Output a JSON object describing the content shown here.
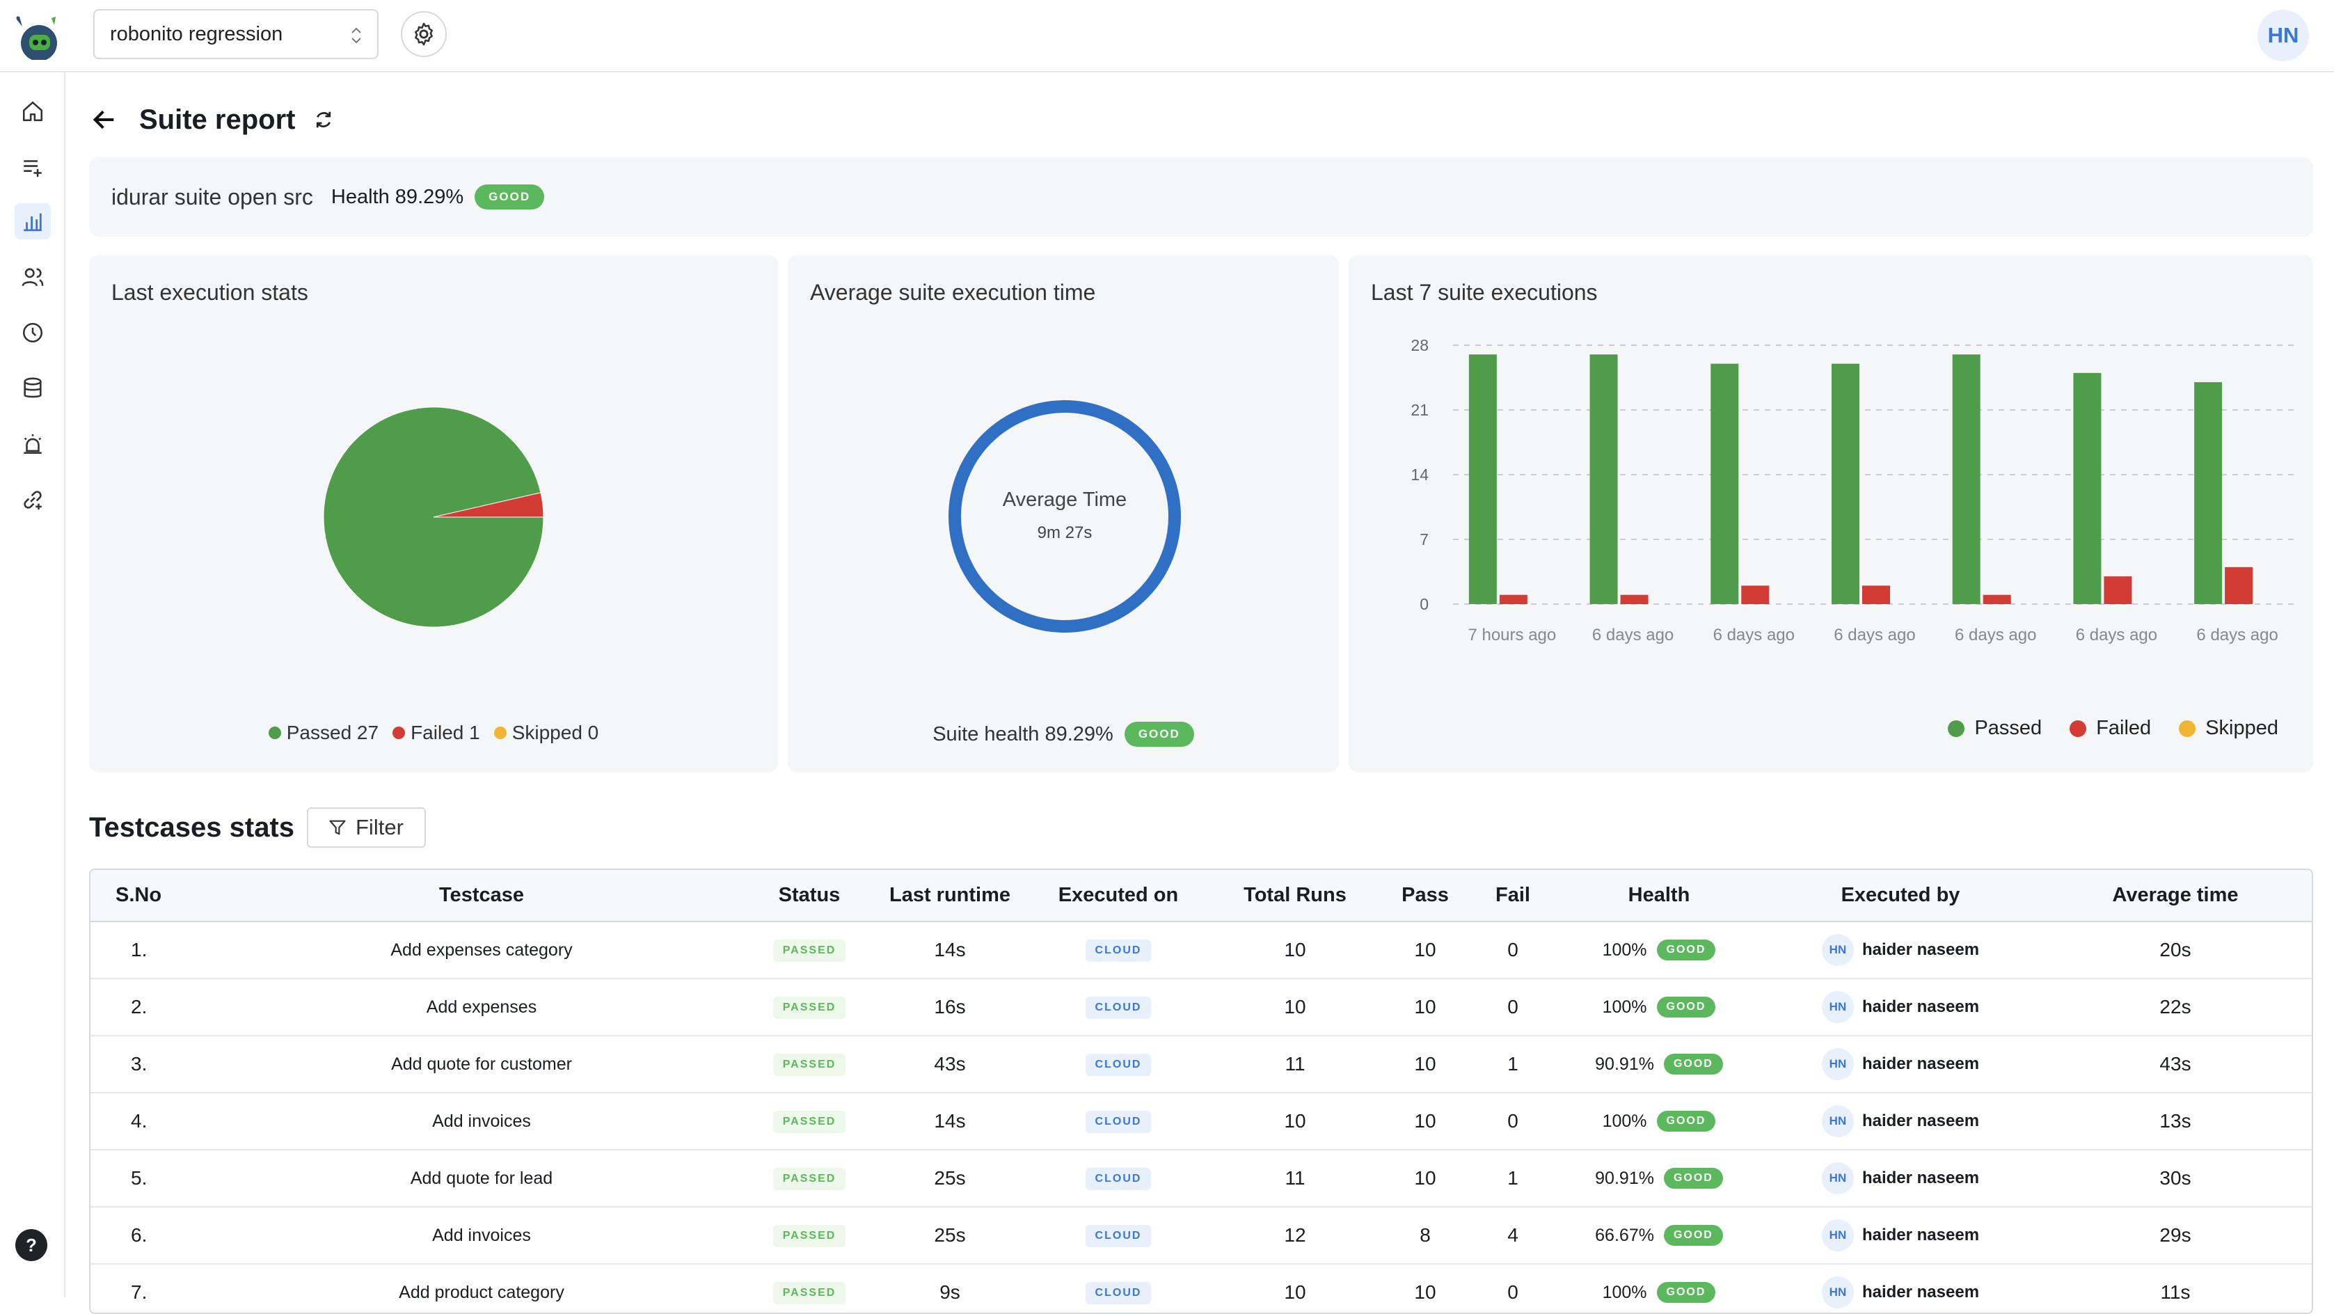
{
  "topbar": {
    "project": "robonito regression",
    "avatar_initials": "HN"
  },
  "sidebar": {
    "items": [
      {
        "icon": "home-icon",
        "active": false
      },
      {
        "icon": "test-list-icon",
        "active": false
      },
      {
        "icon": "bar-chart-icon",
        "active": true
      },
      {
        "icon": "users-icon",
        "active": false
      },
      {
        "icon": "clock-icon",
        "active": false
      },
      {
        "icon": "database-icon",
        "active": false
      },
      {
        "icon": "alarm-icon",
        "active": false
      },
      {
        "icon": "link-add-icon",
        "active": false
      }
    ],
    "help_label": "?"
  },
  "page": {
    "title": "Suite report"
  },
  "suite": {
    "name": "idurar suite open src",
    "health": "Health 89.29%",
    "badge": "GOOD"
  },
  "cards": {
    "last_execution": {
      "title": "Last execution stats",
      "legend": {
        "passed": "Passed 27",
        "failed": "Failed 1",
        "skipped": "Skipped 0"
      }
    },
    "average_time": {
      "title": "Average suite execution time",
      "label": "Average Time",
      "value": "9m 27s",
      "suite_health": "Suite health 89.29%",
      "badge": "GOOD"
    },
    "last_7": {
      "title": "Last 7 suite executions",
      "legend": {
        "passed": "Passed",
        "failed": "Failed",
        "skipped": "Skipped"
      }
    }
  },
  "colors": {
    "passed": "#4f9c4a",
    "failed": "#d33b35",
    "skipped": "#f0b533",
    "good": "#5cb85c",
    "accent": "#3a78d4"
  },
  "chart_data": [
    {
      "type": "pie",
      "title": "Last execution stats",
      "categories": [
        "Passed",
        "Failed",
        "Skipped"
      ],
      "values": [
        27,
        1,
        0
      ]
    },
    {
      "type": "bar",
      "title": "Last 7 suite executions",
      "categories": [
        "7 hours ago",
        "6 days ago",
        "6 days ago",
        "6 days ago",
        "6 days ago",
        "6 days ago",
        "6 days ago"
      ],
      "series": [
        {
          "name": "Passed",
          "values": [
            27,
            27,
            26,
            26,
            27,
            25,
            24
          ]
        },
        {
          "name": "Failed",
          "values": [
            1,
            1,
            2,
            2,
            1,
            3,
            4
          ]
        },
        {
          "name": "Skipped",
          "values": [
            0,
            0,
            0,
            0,
            0,
            0,
            0
          ]
        }
      ],
      "yticks": [
        0,
        7,
        14,
        21,
        28
      ],
      "ylim": [
        0,
        28
      ],
      "grid": "horizontal dashed",
      "legend": "bottom-right"
    }
  ],
  "testcases": {
    "title": "Testcases stats",
    "filter_label": "Filter",
    "columns": [
      "S.No",
      "Testcase",
      "Status",
      "Last runtime",
      "Executed on",
      "Total Runs",
      "Pass",
      "Fail",
      "Health",
      "Executed by",
      "Average time"
    ],
    "rows": [
      {
        "sno": "1.",
        "name": "Add expenses category",
        "status": "PASSED",
        "last_runtime": "14s",
        "executed_on": "CLOUD",
        "total": "10",
        "pass": "10",
        "fail": "0",
        "health": "100%",
        "health_badge": "GOOD",
        "user_initials": "HN",
        "user": "haider naseem",
        "avg": "20s"
      },
      {
        "sno": "2.",
        "name": "Add expenses",
        "status": "PASSED",
        "last_runtime": "16s",
        "executed_on": "CLOUD",
        "total": "10",
        "pass": "10",
        "fail": "0",
        "health": "100%",
        "health_badge": "GOOD",
        "user_initials": "HN",
        "user": "haider naseem",
        "avg": "22s"
      },
      {
        "sno": "3.",
        "name": "Add quote for customer",
        "status": "PASSED",
        "last_runtime": "43s",
        "executed_on": "CLOUD",
        "total": "11",
        "pass": "10",
        "fail": "1",
        "health": "90.91%",
        "health_badge": "GOOD",
        "user_initials": "HN",
        "user": "haider naseem",
        "avg": "43s"
      },
      {
        "sno": "4.",
        "name": "Add invoices",
        "status": "PASSED",
        "last_runtime": "14s",
        "executed_on": "CLOUD",
        "total": "10",
        "pass": "10",
        "fail": "0",
        "health": "100%",
        "health_badge": "GOOD",
        "user_initials": "HN",
        "user": "haider naseem",
        "avg": "13s"
      },
      {
        "sno": "5.",
        "name": "Add quote for lead",
        "status": "PASSED",
        "last_runtime": "25s",
        "executed_on": "CLOUD",
        "total": "11",
        "pass": "10",
        "fail": "1",
        "health": "90.91%",
        "health_badge": "GOOD",
        "user_initials": "HN",
        "user": "haider naseem",
        "avg": "30s"
      },
      {
        "sno": "6.",
        "name": "Add invoices",
        "status": "PASSED",
        "last_runtime": "25s",
        "executed_on": "CLOUD",
        "total": "12",
        "pass": "8",
        "fail": "4",
        "health": "66.67%",
        "health_badge": "GOOD",
        "user_initials": "HN",
        "user": "haider naseem",
        "avg": "29s"
      },
      {
        "sno": "7.",
        "name": "Add product category",
        "status": "PASSED",
        "last_runtime": "9s",
        "executed_on": "CLOUD",
        "total": "10",
        "pass": "10",
        "fail": "0",
        "health": "100%",
        "health_badge": "GOOD",
        "user_initials": "HN",
        "user": "haider naseem",
        "avg": "11s"
      }
    ]
  }
}
